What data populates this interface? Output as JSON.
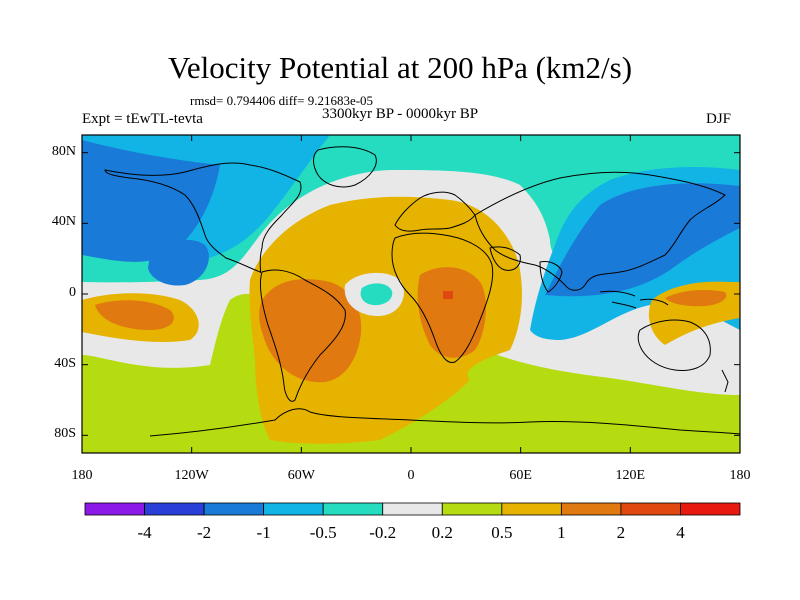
{
  "chart_data": {
    "type": "heatmap",
    "title": "Velocity Potential at 200 hPa (km2/s)",
    "stats_line": "rmsd= 0.794406 diff= 9.21683e-05",
    "left_subtitle": "Expt = tEwTL-tevta",
    "center_subtitle": "3300kyr BP - 0000kyr BP",
    "right_subtitle": "DJF",
    "x_range": [
      -180,
      180
    ],
    "y_range": [
      -90,
      90
    ],
    "x_ticks": [
      {
        "value": -180,
        "label": "180"
      },
      {
        "value": -120,
        "label": "120W"
      },
      {
        "value": -60,
        "label": "60W"
      },
      {
        "value": 0,
        "label": "0"
      },
      {
        "value": 60,
        "label": "60E"
      },
      {
        "value": 120,
        "label": "120E"
      },
      {
        "value": 180,
        "label": "180"
      }
    ],
    "y_ticks": [
      {
        "value": 80,
        "label": "80N"
      },
      {
        "value": 40,
        "label": "40N"
      },
      {
        "value": 0,
        "label": "0"
      },
      {
        "value": -40,
        "label": "40S"
      },
      {
        "value": -80,
        "label": "80S"
      }
    ],
    "colorbar": {
      "colors": [
        "#8b1ae8",
        "#2a3fd8",
        "#1a7ad8",
        "#12b4e6",
        "#26dcc0",
        "#e8e8e8",
        "#b4dc10",
        "#e6b400",
        "#e07a10",
        "#e04810",
        "#e81a10"
      ],
      "labels": [
        "-4",
        "-2",
        "-1",
        "-0.5",
        "-0.2",
        "0.2",
        "0.5",
        "1",
        "2",
        "4"
      ]
    },
    "field_regions": [
      {
        "level": "0.2 to 0.5",
        "color": "#b4dc10",
        "lon": [
          -180,
          180
        ],
        "lat": [
          -90,
          90
        ]
      },
      {
        "level": "-0.2 to 0.2",
        "color": "#e8e8e8",
        "lon": [
          -180,
          180
        ],
        "lat": [
          10,
          90
        ]
      },
      {
        "level": "-0.5 to -0.2",
        "color": "#26dcc0",
        "lon": [
          -180,
          180
        ],
        "lat": [
          15,
          90
        ]
      },
      {
        "level": "-1 to -0.5",
        "color": "#12b4e6",
        "lon": [
          60,
          180
        ],
        "lat": [
          -15,
          60
        ]
      },
      {
        "level": "-2 to -1",
        "color": "#1a7ad8",
        "lon": [
          70,
          175
        ],
        "lat": [
          0,
          60
        ]
      },
      {
        "level": "-2 to -1",
        "color": "#1a7ad8",
        "lon": [
          -180,
          -90
        ],
        "lat": [
          15,
          90
        ]
      },
      {
        "level": "0.5 to 1",
        "color": "#e6b400",
        "lon": [
          -90,
          60
        ],
        "lat": [
          -90,
          40
        ]
      },
      {
        "level": "1 to 2",
        "color": "#e07a10",
        "lon": [
          -75,
          -25
        ],
        "lat": [
          -40,
          10
        ]
      },
      {
        "level": "1 to 2",
        "color": "#e07a10",
        "lon": [
          5,
          40
        ],
        "lat": [
          -35,
          10
        ]
      },
      {
        "level": "1 to 2",
        "color": "#e07a10",
        "lon": [
          -175,
          -140
        ],
        "lat": [
          -20,
          0
        ]
      },
      {
        "level": "1 to 2",
        "color": "#e07a10",
        "lon": [
          140,
          175
        ],
        "lat": [
          -10,
          5
        ]
      },
      {
        "level": "2 to 4",
        "color": "#e04810",
        "lon": [
          15,
          22
        ],
        "lat": [
          -2,
          3
        ]
      }
    ]
  }
}
